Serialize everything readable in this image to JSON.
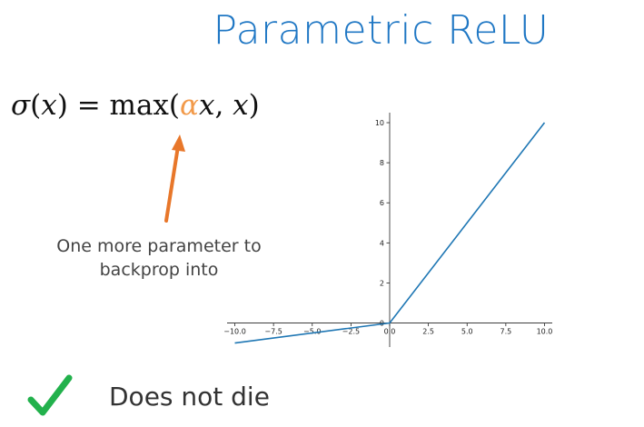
{
  "slide": {
    "title": "Parametric ReLU",
    "formula": {
      "sigma": "σ",
      "lhs_open": "(",
      "lhs_var": "x",
      "lhs_close": ") = ",
      "max": "max(",
      "alpha": "α",
      "arg1_var": "x",
      "comma": ", ",
      "arg2_var": "x",
      "close": ")"
    },
    "note_line1": "One more parameter to",
    "note_line2": "backprop into",
    "bullet_text": "Does not die"
  },
  "colors": {
    "title": "#1f77c4",
    "alpha": "#f29a4a",
    "arrow": "#e8772a",
    "line": "#1f77b4",
    "check": "#22b14c"
  },
  "icons": {
    "check": "check-icon",
    "arrow": "arrow-up-icon"
  },
  "chart_data": {
    "type": "line",
    "alpha": 0.1,
    "x": [
      -10.0,
      0.0,
      10.0
    ],
    "series": [
      {
        "values": [
          -1.0,
          0.0,
          10.0
        ]
      }
    ],
    "xlim": [
      -10.5,
      10.5
    ],
    "ylim": [
      -1.2,
      10.5
    ],
    "xticks": [
      -10.0,
      -7.5,
      -5.0,
      -2.5,
      0.0,
      2.5,
      5.0,
      7.5,
      10.0
    ],
    "xtick_labels": [
      "−10.0",
      "−7.5",
      "−5.0",
      "−2.5",
      "0.0",
      "2.5",
      "5.0",
      "7.5",
      "10.0"
    ],
    "yticks": [
      0,
      2,
      4,
      6,
      8,
      10
    ],
    "ytick_labels": [
      "0",
      "2",
      "4",
      "6",
      "8",
      "10"
    ],
    "spines": "centered at origin",
    "grid": false
  }
}
